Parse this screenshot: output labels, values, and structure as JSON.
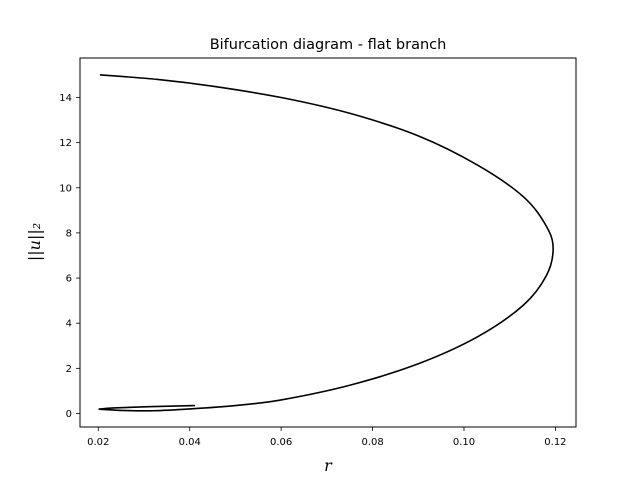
{
  "chart_data": {
    "type": "line",
    "title": "Bifurcation diagram - flat branch",
    "xlabel": "r",
    "ylabel": "||u||₂",
    "xlim": [
      0.016,
      0.1245
    ],
    "ylim": [
      -0.6,
      15.75
    ],
    "x_ticks": [
      0.02,
      0.04,
      0.06,
      0.08,
      0.1,
      0.12
    ],
    "x_tick_labels": [
      "0.02",
      "0.04",
      "0.06",
      "0.08",
      "0.10",
      "0.12"
    ],
    "y_ticks": [
      0,
      2,
      4,
      6,
      8,
      10,
      12,
      14
    ],
    "y_tick_labels": [
      "0",
      "2",
      "4",
      "6",
      "8",
      "10",
      "12",
      "14"
    ],
    "grid": false,
    "legend": "none",
    "colors": {
      "line": "#000000",
      "axes": "#000000",
      "background": "#ffffff"
    },
    "series": [
      {
        "x": [
          0.0205,
          0.033,
          0.045,
          0.06,
          0.075,
          0.09,
          0.103,
          0.113,
          0.118,
          0.1195,
          0.118,
          0.113,
          0.103,
          0.09,
          0.075,
          0.06,
          0.05,
          0.04,
          0.032,
          0.026,
          0.021,
          0.0205,
          0.024,
          0.031,
          0.041
        ],
        "y": [
          15.0,
          14.8,
          14.5,
          14.0,
          13.3,
          12.3,
          11.0,
          9.6,
          8.3,
          7.3,
          6.1,
          4.8,
          3.4,
          2.2,
          1.25,
          0.6,
          0.35,
          0.2,
          0.12,
          0.13,
          0.18,
          0.2,
          0.25,
          0.3,
          0.35
        ]
      }
    ]
  }
}
